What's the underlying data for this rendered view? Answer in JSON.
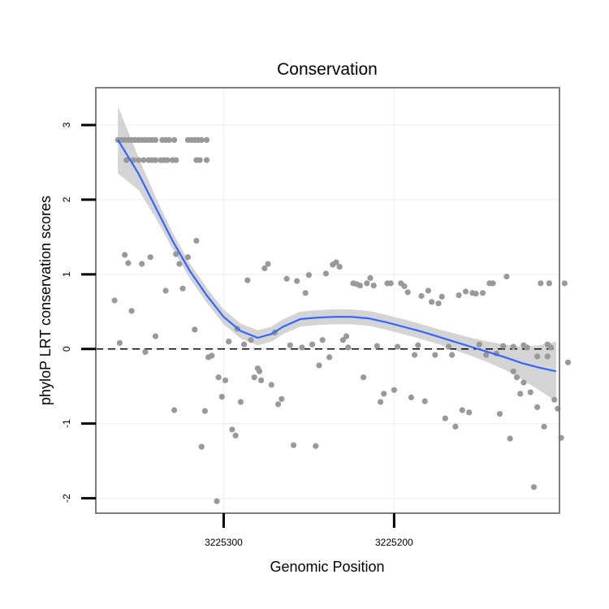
{
  "chart_data": {
    "type": "scatter",
    "title": "Conservation",
    "xlabel": "Genomic Position",
    "ylabel": "phyloP LRT conservation scores",
    "x_reversed": true,
    "xlim": [
      3225375,
      3225103
    ],
    "ylim": [
      -2.2,
      3.5
    ],
    "x_ticks": [
      3225300,
      3225200
    ],
    "x_tick_labels": [
      "3225300",
      "3225200"
    ],
    "y_ticks": [
      -2,
      -1,
      0,
      1,
      2,
      3
    ],
    "y_tick_labels": [
      "-2",
      "-1",
      "0",
      "1",
      "2",
      "3"
    ],
    "grid": true,
    "reference_line": {
      "y": 0,
      "style": "dashed"
    },
    "colors": {
      "points": "#999999",
      "smooth": "#3366ff",
      "band": "#cccccc",
      "frame": "#7f7f7f",
      "grid": "#f2f2f2"
    },
    "points": [
      [
        3225362,
        2.8
      ],
      [
        3225360,
        2.8
      ],
      [
        3225358,
        2.8
      ],
      [
        3225356,
        2.8
      ],
      [
        3225354,
        2.8
      ],
      [
        3225352,
        2.8
      ],
      [
        3225350,
        2.8
      ],
      [
        3225348,
        2.8
      ],
      [
        3225346,
        2.8
      ],
      [
        3225344,
        2.8
      ],
      [
        3225342,
        2.8
      ],
      [
        3225340,
        2.8
      ],
      [
        3225336,
        2.8
      ],
      [
        3225334,
        2.8
      ],
      [
        3225332,
        2.8
      ],
      [
        3225329,
        2.8
      ],
      [
        3225321,
        2.8
      ],
      [
        3225319,
        2.8
      ],
      [
        3225317,
        2.8
      ],
      [
        3225315,
        2.8
      ],
      [
        3225313,
        2.8
      ],
      [
        3225310,
        2.8
      ],
      [
        3225357,
        2.53
      ],
      [
        3225353,
        2.53
      ],
      [
        3225350,
        2.53
      ],
      [
        3225347,
        2.53
      ],
      [
        3225344,
        2.53
      ],
      [
        3225342,
        2.53
      ],
      [
        3225340,
        2.53
      ],
      [
        3225337,
        2.53
      ],
      [
        3225335,
        2.53
      ],
      [
        3225333,
        2.53
      ],
      [
        3225330,
        2.53
      ],
      [
        3225328,
        2.53
      ],
      [
        3225316,
        2.53
      ],
      [
        3225314,
        2.53
      ],
      [
        3225310,
        2.53
      ],
      [
        3225364,
        0.65
      ],
      [
        3225361,
        0.08
      ],
      [
        3225358,
        1.26
      ],
      [
        3225356,
        1.15
      ],
      [
        3225354,
        0.51
      ],
      [
        3225348,
        1.14
      ],
      [
        3225346,
        -0.04
      ],
      [
        3225343,
        1.23
      ],
      [
        3225340,
        0.17
      ],
      [
        3225334,
        0.78
      ],
      [
        3225329,
        -0.82
      ],
      [
        3225328,
        1.27
      ],
      [
        3225326,
        1.14
      ],
      [
        3225324,
        0.81
      ],
      [
        3225321,
        1.23
      ],
      [
        3225317,
        0.26
      ],
      [
        3225316,
        1.45
      ],
      [
        3225313,
        -1.31
      ],
      [
        3225311,
        -0.83
      ],
      [
        3225309,
        -0.11
      ],
      [
        3225307,
        -0.09
      ],
      [
        3225304,
        -2.04
      ],
      [
        3225303,
        -0.38
      ],
      [
        3225301,
        -0.64
      ],
      [
        3225299,
        -0.42
      ],
      [
        3225297,
        0.1
      ],
      [
        3225295,
        -1.08
      ],
      [
        3225293,
        -1.16
      ],
      [
        3225292,
        0.27
      ],
      [
        3225290,
        -0.71
      ],
      [
        3225288,
        0.06
      ],
      [
        3225286,
        0.92
      ],
      [
        3225284,
        0.12
      ],
      [
        3225282,
        -0.38
      ],
      [
        3225280,
        -0.26
      ],
      [
        3225279,
        -0.3
      ],
      [
        3225278,
        -0.42
      ],
      [
        3225276,
        1.08
      ],
      [
        3225274,
        1.14
      ],
      [
        3225272,
        -0.48
      ],
      [
        3225270,
        0.22
      ],
      [
        3225268,
        -0.74
      ],
      [
        3225266,
        -0.67
      ],
      [
        3225263,
        0.94
      ],
      [
        3225261,
        0.05
      ],
      [
        3225259,
        -1.29
      ],
      [
        3225257,
        0.91
      ],
      [
        3225254,
        0.02
      ],
      [
        3225252,
        0.75
      ],
      [
        3225250,
        0.99
      ],
      [
        3225248,
        0.06
      ],
      [
        3225246,
        -1.3
      ],
      [
        3225244,
        -0.22
      ],
      [
        3225242,
        0.12
      ],
      [
        3225240,
        1.01
      ],
      [
        3225238,
        -0.11
      ],
      [
        3225236,
        1.13
      ],
      [
        3225234,
        1.16
      ],
      [
        3225232,
        1.1
      ],
      [
        3225230,
        0.12
      ],
      [
        3225228,
        0.17
      ],
      [
        3225227,
        0.02
      ],
      [
        3225224,
        0.88
      ],
      [
        3225222,
        0.87
      ],
      [
        3225220,
        0.85
      ],
      [
        3225218,
        -0.38
      ],
      [
        3225216,
        0.88
      ],
      [
        3225214,
        0.95
      ],
      [
        3225212,
        0.85
      ],
      [
        3225210,
        0.04
      ],
      [
        3225208,
        -0.71
      ],
      [
        3225206,
        -0.6
      ],
      [
        3225204,
        0.88
      ],
      [
        3225202,
        0.88
      ],
      [
        3225200,
        -0.55
      ],
      [
        3225198,
        0.03
      ],
      [
        3225196,
        0.88
      ],
      [
        3225194,
        0.84
      ],
      [
        3225192,
        0.76
      ],
      [
        3225190,
        -0.65
      ],
      [
        3225188,
        -0.08
      ],
      [
        3225186,
        0.05
      ],
      [
        3225184,
        0.71
      ],
      [
        3225182,
        -0.7
      ],
      [
        3225180,
        0.78
      ],
      [
        3225178,
        0.63
      ],
      [
        3225176,
        -0.08
      ],
      [
        3225174,
        0.61
      ],
      [
        3225172,
        0.7
      ],
      [
        3225170,
        -0.93
      ],
      [
        3225168,
        0.03
      ],
      [
        3225166,
        -0.08
      ],
      [
        3225164,
        -1.04
      ],
      [
        3225162,
        0.72
      ],
      [
        3225160,
        -0.82
      ],
      [
        3225158,
        0.77
      ],
      [
        3225156,
        -0.85
      ],
      [
        3225154,
        0.75
      ],
      [
        3225152,
        0.74
      ],
      [
        3225150,
        0.06
      ],
      [
        3225148,
        0.75
      ],
      [
        3225146,
        -0.08
      ],
      [
        3225144,
        0.88
      ],
      [
        3225142,
        0.88
      ],
      [
        3225140,
        -0.06
      ],
      [
        3225138,
        -0.87
      ],
      [
        3225136,
        0.04
      ],
      [
        3225134,
        0.97
      ],
      [
        3225132,
        -1.2
      ],
      [
        3225130,
        0.03
      ],
      [
        3225128,
        -0.38
      ],
      [
        3225126,
        -0.6
      ],
      [
        3225124,
        -0.45
      ],
      [
        3225122,
        0.02
      ],
      [
        3225120,
        -0.58
      ],
      [
        3225118,
        -1.85
      ],
      [
        3225116,
        -0.78
      ],
      [
        3225114,
        0.88
      ],
      [
        3225112,
        -1.04
      ],
      [
        3225110,
        0.06
      ],
      [
        3225108,
        0.02
      ],
      [
        3225106,
        -0.68
      ],
      [
        3225104,
        -0.8
      ],
      [
        3225102,
        -1.19
      ],
      [
        3225100,
        0.88
      ],
      [
        3225098,
        -0.18
      ],
      [
        3225116,
        -0.1
      ],
      [
        3225124,
        0.05
      ],
      [
        3225130,
        -0.3
      ],
      [
        3225110,
        -0.1
      ],
      [
        3225109,
        0.88
      ]
    ],
    "smooth_line": [
      [
        3225362,
        2.8
      ],
      [
        3225350,
        2.35
      ],
      [
        3225340,
        1.9
      ],
      [
        3225330,
        1.45
      ],
      [
        3225320,
        1.05
      ],
      [
        3225310,
        0.72
      ],
      [
        3225300,
        0.43
      ],
      [
        3225290,
        0.24
      ],
      [
        3225280,
        0.15
      ],
      [
        3225272,
        0.2
      ],
      [
        3225265,
        0.3
      ],
      [
        3225255,
        0.4
      ],
      [
        3225245,
        0.42
      ],
      [
        3225235,
        0.43
      ],
      [
        3225225,
        0.43
      ],
      [
        3225215,
        0.41
      ],
      [
        3225205,
        0.36
      ],
      [
        3225195,
        0.3
      ],
      [
        3225185,
        0.24
      ],
      [
        3225175,
        0.17
      ],
      [
        3225165,
        0.1
      ],
      [
        3225155,
        0.03
      ],
      [
        3225145,
        -0.04
      ],
      [
        3225135,
        -0.11
      ],
      [
        3225125,
        -0.19
      ],
      [
        3225115,
        -0.25
      ],
      [
        3225105,
        -0.3
      ]
    ],
    "band_halfwidth": [
      0.45,
      0.22,
      0.14,
      0.11,
      0.1,
      0.1,
      0.1,
      0.1,
      0.1,
      0.1,
      0.1,
      0.1,
      0.1,
      0.1,
      0.1,
      0.1,
      0.1,
      0.1,
      0.1,
      0.1,
      0.11,
      0.12,
      0.14,
      0.17,
      0.22,
      0.3,
      0.4
    ]
  }
}
